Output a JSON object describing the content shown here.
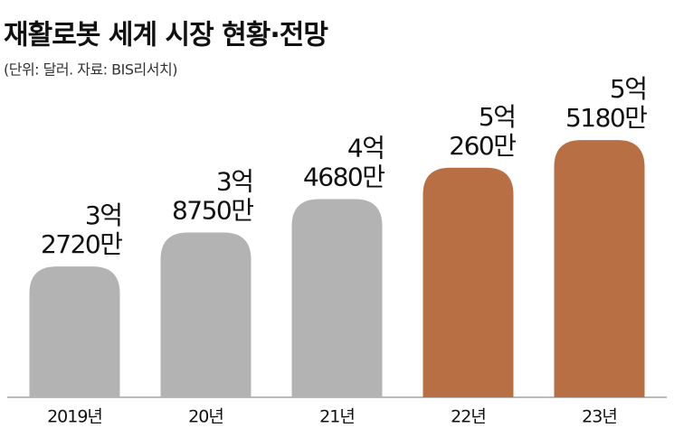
{
  "chart_data": {
    "type": "bar",
    "title": "재활로봇 세계 시장 현황·전망",
    "subtitle": "(단위: 달러. 자료: BIS리서치)",
    "categories": [
      "2019년",
      "20년",
      "21년",
      "22년",
      "23년"
    ],
    "values": [
      327200000,
      387500000,
      446800000,
      502600000,
      551800000
    ],
    "value_labels": [
      "3억 2720만",
      "3억 8750만",
      "4억 4680만",
      "5억 260만",
      "5억 5180만"
    ],
    "colors": [
      "#b3b3b3",
      "#b3b3b3",
      "#b3b3b3",
      "#b86f43",
      "#b86f43"
    ],
    "ylim": [
      95000000,
      600000000
    ]
  }
}
